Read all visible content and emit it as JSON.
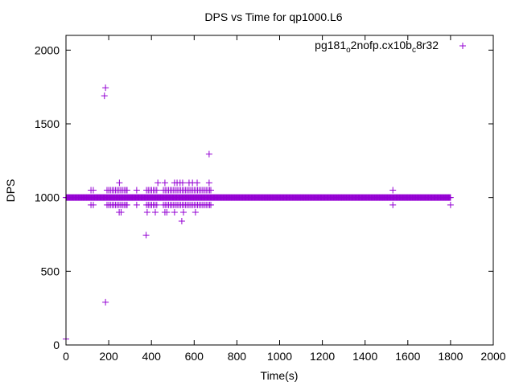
{
  "chart_data": {
    "type": "scatter",
    "title": "DPS vs Time for qp1000.L6",
    "xlabel": "Time(s)",
    "ylabel": "DPS",
    "xlim": [
      0,
      2000
    ],
    "ylim": [
      0,
      2100
    ],
    "xticks": [
      0,
      200,
      400,
      600,
      800,
      1000,
      1200,
      1400,
      1600,
      1800,
      2000
    ],
    "yticks": [
      0,
      500,
      1000,
      1500,
      2000
    ],
    "grid": false,
    "legend_position": "top-right",
    "color": "#9400D3",
    "series": [
      {
        "name": "pg181_o2nofp.cx10b_c8r32",
        "name_parts": [
          {
            "text": "pg181",
            "sub": false
          },
          {
            "text": "o",
            "sub": true
          },
          {
            "text": "2nofp.cx10b",
            "sub": false
          },
          {
            "text": "c",
            "sub": true
          },
          {
            "text": "8r32",
            "sub": false
          }
        ],
        "dense_band": {
          "y": 1000,
          "x_range": [
            0,
            1800
          ],
          "step": 3
        },
        "points": [
          [
            0,
            40
          ],
          [
            180,
            1690
          ],
          [
            185,
            1745
          ],
          [
            185,
            290
          ],
          [
            375,
            745
          ],
          [
            542,
            840
          ],
          [
            670,
            1295
          ],
          [
            1530,
            1050
          ],
          [
            1530,
            950
          ],
          [
            1800,
            950
          ],
          [
            250,
            1100
          ],
          [
            430,
            1100
          ],
          [
            463,
            1100
          ],
          [
            508,
            1100
          ],
          [
            520,
            1100
          ],
          [
            534,
            1100
          ],
          [
            546,
            1100
          ],
          [
            576,
            1100
          ],
          [
            592,
            1100
          ],
          [
            614,
            1100
          ],
          [
            670,
            1100
          ],
          [
            249,
            900
          ],
          [
            258,
            900
          ],
          [
            380,
            900
          ],
          [
            418,
            900
          ],
          [
            463,
            900
          ],
          [
            472,
            900
          ],
          [
            508,
            900
          ],
          [
            550,
            900
          ],
          [
            606,
            900
          ],
          [
            117,
            1050
          ],
          [
            128,
            1050
          ],
          [
            192,
            1050
          ],
          [
            200,
            1050
          ],
          [
            208,
            1050
          ],
          [
            216,
            1050
          ],
          [
            224,
            1050
          ],
          [
            232,
            1050
          ],
          [
            240,
            1050
          ],
          [
            248,
            1050
          ],
          [
            256,
            1050
          ],
          [
            264,
            1050
          ],
          [
            272,
            1050
          ],
          [
            280,
            1050
          ],
          [
            286,
            1050
          ],
          [
            331,
            1050
          ],
          [
            377,
            1050
          ],
          [
            385,
            1050
          ],
          [
            393,
            1050
          ],
          [
            401,
            1050
          ],
          [
            409,
            1050
          ],
          [
            417,
            1050
          ],
          [
            425,
            1050
          ],
          [
            456,
            1050
          ],
          [
            464,
            1050
          ],
          [
            472,
            1050
          ],
          [
            480,
            1050
          ],
          [
            488,
            1050
          ],
          [
            496,
            1050
          ],
          [
            504,
            1050
          ],
          [
            512,
            1050
          ],
          [
            520,
            1050
          ],
          [
            528,
            1050
          ],
          [
            536,
            1050
          ],
          [
            544,
            1050
          ],
          [
            552,
            1050
          ],
          [
            560,
            1050
          ],
          [
            568,
            1050
          ],
          [
            576,
            1050
          ],
          [
            584,
            1050
          ],
          [
            592,
            1050
          ],
          [
            600,
            1050
          ],
          [
            608,
            1050
          ],
          [
            616,
            1050
          ],
          [
            624,
            1050
          ],
          [
            632,
            1050
          ],
          [
            640,
            1050
          ],
          [
            648,
            1050
          ],
          [
            656,
            1050
          ],
          [
            664,
            1050
          ],
          [
            672,
            1050
          ],
          [
            678,
            1050
          ],
          [
            117,
            950
          ],
          [
            128,
            950
          ],
          [
            192,
            950
          ],
          [
            200,
            950
          ],
          [
            208,
            950
          ],
          [
            216,
            950
          ],
          [
            224,
            950
          ],
          [
            232,
            950
          ],
          [
            240,
            950
          ],
          [
            248,
            950
          ],
          [
            256,
            950
          ],
          [
            264,
            950
          ],
          [
            272,
            950
          ],
          [
            280,
            950
          ],
          [
            286,
            950
          ],
          [
            331,
            950
          ],
          [
            377,
            950
          ],
          [
            385,
            950
          ],
          [
            393,
            950
          ],
          [
            401,
            950
          ],
          [
            409,
            950
          ],
          [
            417,
            950
          ],
          [
            425,
            950
          ],
          [
            456,
            950
          ],
          [
            464,
            950
          ],
          [
            472,
            950
          ],
          [
            480,
            950
          ],
          [
            488,
            950
          ],
          [
            496,
            950
          ],
          [
            504,
            950
          ],
          [
            512,
            950
          ],
          [
            520,
            950
          ],
          [
            528,
            950
          ],
          [
            536,
            950
          ],
          [
            544,
            950
          ],
          [
            552,
            950
          ],
          [
            560,
            950
          ],
          [
            568,
            950
          ],
          [
            576,
            950
          ],
          [
            584,
            950
          ],
          [
            592,
            950
          ],
          [
            600,
            950
          ],
          [
            608,
            950
          ],
          [
            616,
            950
          ],
          [
            624,
            950
          ],
          [
            632,
            950
          ],
          [
            640,
            950
          ],
          [
            648,
            950
          ],
          [
            656,
            950
          ],
          [
            664,
            950
          ],
          [
            672,
            950
          ],
          [
            678,
            950
          ]
        ]
      }
    ]
  }
}
